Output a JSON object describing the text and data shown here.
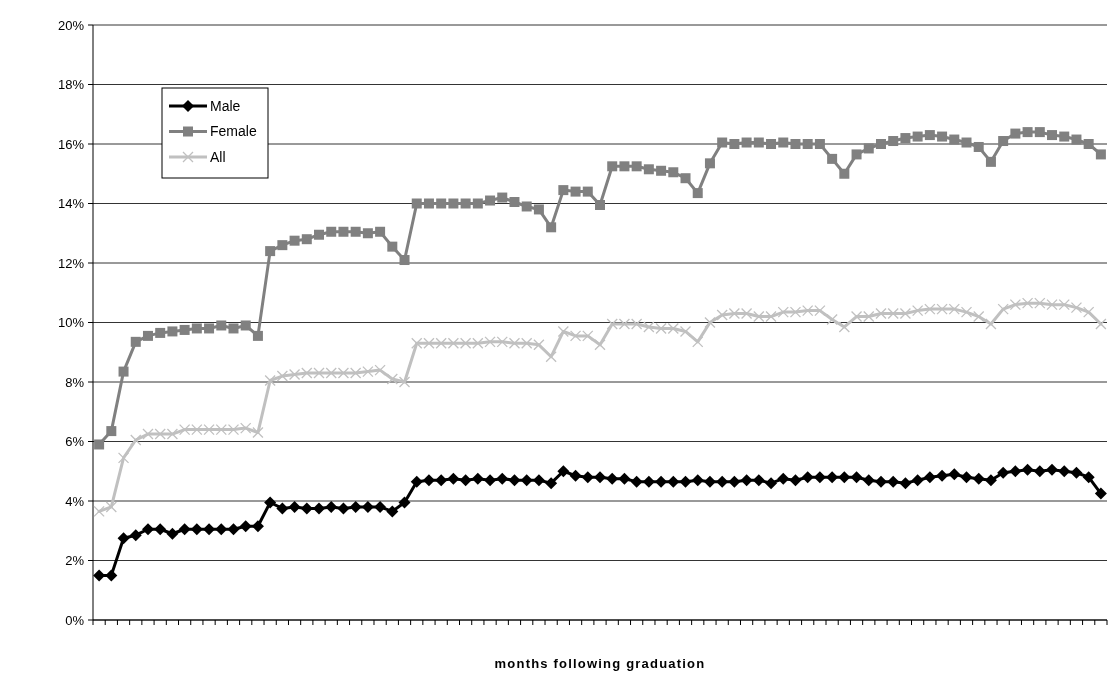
{
  "chart_data": {
    "type": "line",
    "xlabel": "months following graduation",
    "categories": [
      null,
      null,
      null,
      null,
      null,
      null,
      null,
      null,
      null,
      null,
      null,
      null,
      null,
      null,
      null,
      null,
      null,
      null,
      null,
      null,
      null,
      null,
      null,
      null,
      null,
      null,
      null,
      null,
      null,
      null,
      null,
      null,
      null,
      null,
      null,
      null,
      null,
      null,
      null,
      null,
      null,
      null,
      null,
      null,
      null,
      null,
      null,
      null,
      null,
      null,
      null,
      null,
      null,
      null,
      null,
      null,
      null,
      null,
      null,
      null,
      null,
      null,
      null,
      null,
      null,
      null,
      null,
      null,
      null,
      null,
      null,
      null,
      null,
      null,
      null,
      null,
      null,
      null,
      null,
      null,
      null,
      null,
      null
    ],
    "series": [
      {
        "name": "Male",
        "color": "#000000",
        "marker": "diamond",
        "values": [
          1.5,
          1.5,
          2.75,
          2.85,
          3.05,
          3.05,
          2.9,
          3.05,
          3.05,
          3.05,
          3.05,
          3.05,
          3.15,
          3.15,
          3.95,
          3.75,
          3.8,
          3.75,
          3.75,
          3.8,
          3.75,
          3.8,
          3.8,
          3.8,
          3.65,
          3.95,
          4.65,
          4.7,
          4.7,
          4.75,
          4.7,
          4.75,
          4.7,
          4.75,
          4.7,
          4.7,
          4.7,
          4.6,
          5.0,
          4.85,
          4.8,
          4.8,
          4.75,
          4.75,
          4.65,
          4.65,
          4.65,
          4.65,
          4.65,
          4.7,
          4.65,
          4.65,
          4.65,
          4.7,
          4.7,
          4.6,
          4.75,
          4.7,
          4.8,
          4.8,
          4.8,
          4.8,
          4.8,
          4.7,
          4.65,
          4.65,
          4.6,
          4.7,
          4.8,
          4.85,
          4.9,
          4.8,
          4.75,
          4.7,
          4.95,
          5.0,
          5.05,
          5.0,
          5.05,
          5.0,
          4.95,
          4.8,
          4.25
        ]
      },
      {
        "name": "Female",
        "color": "#808080",
        "marker": "square",
        "values": [
          5.9,
          6.35,
          8.35,
          9.35,
          9.55,
          9.65,
          9.7,
          9.75,
          9.8,
          9.8,
          9.9,
          9.8,
          9.9,
          9.55,
          12.4,
          12.6,
          12.75,
          12.8,
          12.95,
          13.05,
          13.05,
          13.05,
          13.0,
          13.05,
          12.55,
          12.1,
          14.0,
          14.0,
          14.0,
          14.0,
          14.0,
          14.0,
          14.1,
          14.2,
          14.05,
          13.9,
          13.8,
          13.2,
          14.45,
          14.4,
          14.4,
          13.95,
          15.25,
          15.25,
          15.25,
          15.15,
          15.1,
          15.05,
          14.85,
          14.35,
          15.35,
          16.05,
          16.0,
          16.05,
          16.05,
          16.0,
          16.05,
          16.0,
          16.0,
          16.0,
          15.5,
          15.0,
          15.65,
          15.85,
          16.0,
          16.1,
          16.2,
          16.25,
          16.3,
          16.25,
          16.15,
          16.05,
          15.9,
          15.4,
          16.1,
          16.35,
          16.4,
          16.4,
          16.3,
          16.25,
          16.15,
          16.0,
          15.65
        ]
      },
      {
        "name": "All",
        "color": "#c0c0c0",
        "marker": "cross",
        "values": [
          3.65,
          3.8,
          5.45,
          6.05,
          6.25,
          6.25,
          6.25,
          6.4,
          6.4,
          6.4,
          6.4,
          6.4,
          6.45,
          6.3,
          8.05,
          8.2,
          8.25,
          8.3,
          8.3,
          8.3,
          8.3,
          8.3,
          8.35,
          8.4,
          8.1,
          8.0,
          9.3,
          9.3,
          9.3,
          9.3,
          9.3,
          9.3,
          9.35,
          9.35,
          9.3,
          9.3,
          9.25,
          8.85,
          9.7,
          9.55,
          9.55,
          9.25,
          9.95,
          9.95,
          9.95,
          9.85,
          9.8,
          9.8,
          9.7,
          9.35,
          10.0,
          10.25,
          10.3,
          10.3,
          10.2,
          10.2,
          10.35,
          10.35,
          10.4,
          10.4,
          10.1,
          9.85,
          10.2,
          10.2,
          10.3,
          10.3,
          10.3,
          10.4,
          10.45,
          10.45,
          10.45,
          10.35,
          10.2,
          9.95,
          10.45,
          10.6,
          10.65,
          10.65,
          10.6,
          10.6,
          10.5,
          10.35,
          9.95
        ]
      }
    ],
    "ylim": [
      0,
      20
    ],
    "yticks": [
      {
        "value": 0,
        "label": "0%"
      },
      {
        "value": 2,
        "label": "2%"
      },
      {
        "value": 4,
        "label": "4%"
      },
      {
        "value": 6,
        "label": "6%"
      },
      {
        "value": 8,
        "label": "8%"
      },
      {
        "value": 10,
        "label": "10%"
      },
      {
        "value": 12,
        "label": "12%"
      },
      {
        "value": 14,
        "label": "14%"
      },
      {
        "value": 16,
        "label": "16%"
      },
      {
        "value": 18,
        "label": "18%"
      },
      {
        "value": 20,
        "label": "20%"
      }
    ],
    "grid": "y",
    "legend": "top left",
    "line_style": "solid"
  }
}
